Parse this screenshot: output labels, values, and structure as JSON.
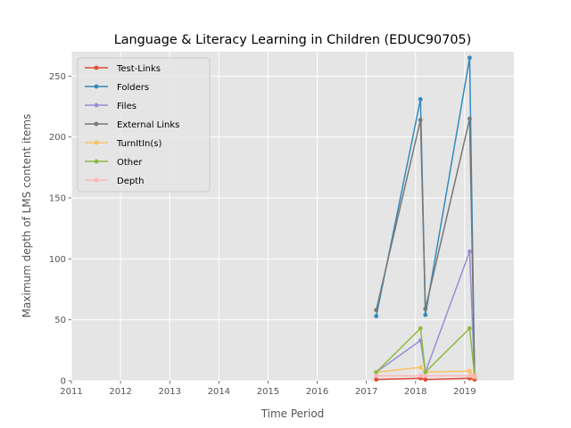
{
  "chart_data": {
    "type": "line",
    "title": "Language & Literacy Learning in Children (EDUC90705)",
    "xlabel": "Time Period",
    "ylabel": "Maximum depth of LMS content items",
    "xlim": [
      2011,
      2020
    ],
    "ylim": [
      0,
      270
    ],
    "xticks": [
      2011,
      2012,
      2013,
      2014,
      2015,
      2016,
      2017,
      2018,
      2019
    ],
    "yticks": [
      0,
      50,
      100,
      150,
      200,
      250
    ],
    "grid": true,
    "legend_position": "upper-left",
    "x": [
      2017.2,
      2018.1,
      2018.2,
      2019.1,
      2019.2
    ],
    "series": [
      {
        "name": "Test-Links",
        "color": "#E24A33",
        "values": [
          1,
          2,
          1,
          2,
          1
        ]
      },
      {
        "name": "Folders",
        "color": "#348ABD",
        "values": [
          53,
          231,
          54,
          265,
          4
        ]
      },
      {
        "name": "Files",
        "color": "#988ED5",
        "values": [
          7,
          33,
          7,
          106,
          3
        ]
      },
      {
        "name": "External Links",
        "color": "#777777",
        "values": [
          58,
          214,
          59,
          215,
          4
        ]
      },
      {
        "name": "TurnItIn(s)",
        "color": "#FBC15E",
        "values": [
          7,
          11,
          7,
          8,
          3
        ]
      },
      {
        "name": "Other",
        "color": "#8EBA42",
        "values": [
          7,
          43,
          7,
          43,
          4
        ]
      },
      {
        "name": "Depth",
        "color": "#FFB5B8",
        "values": [
          4,
          4,
          4,
          4,
          4
        ]
      }
    ]
  }
}
